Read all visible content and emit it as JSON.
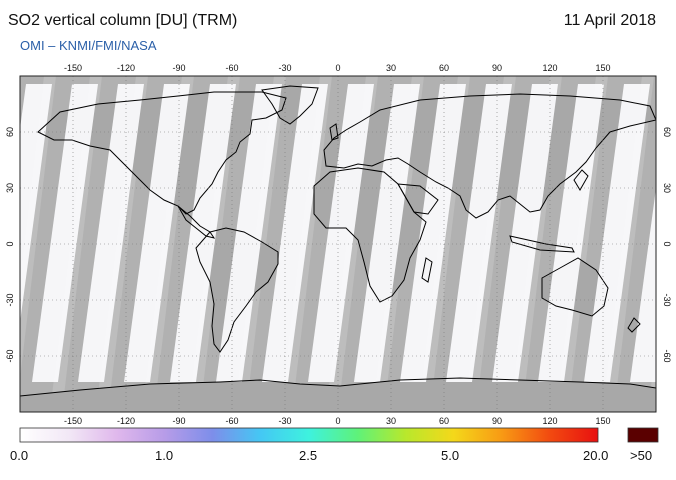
{
  "header": {
    "title": "SO2 vertical column [DU] (TRM)",
    "date": "11 April 2018",
    "credit": "OMI  –  KNMI/FMI/NASA"
  },
  "map": {
    "lon_ticks": [
      "-150",
      "-120",
      "-90",
      "-60",
      "-30",
      "0",
      "30",
      "60",
      "90",
      "120",
      "150"
    ],
    "lat_ticks_left": [
      "60",
      "30",
      "0",
      "-30",
      "-60"
    ],
    "lat_ticks_right": [
      "60",
      "30",
      "0",
      "-30",
      "-60"
    ],
    "colors": {
      "no_data": "#bdbdbd",
      "land_gap": "#a8a8a8",
      "swath": "#fbfbfd",
      "coast": "#000000",
      "grid": "#777777"
    }
  },
  "colorbar": {
    "labels": [
      "0.0",
      "1.0",
      "2.5",
      "5.0",
      "20.0"
    ],
    "overflow_label": ">50",
    "overflow_color": "#5a0000",
    "stops": [
      "#ffffff",
      "#f2e8f6",
      "#e0b8ec",
      "#b79ce8",
      "#7d8eea",
      "#44c8f4",
      "#3ef2de",
      "#5ef27a",
      "#b8e82c",
      "#f4d81a",
      "#f89a14",
      "#f24a10",
      "#e81010"
    ]
  }
}
